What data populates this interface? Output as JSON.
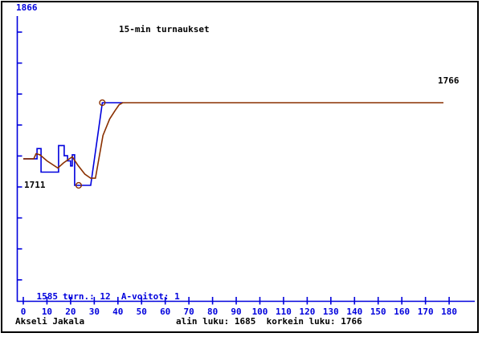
{
  "frame": {
    "bg": "#ffffff",
    "border_color": "#000000"
  },
  "colors": {
    "axis_blue": "#0000dd",
    "line_blue": "#0000dd",
    "line_brown": "#8a3000",
    "text_black": "#000000"
  },
  "chart_data": {
    "type": "line",
    "title": "15-min turnaukset",
    "xlabel": "",
    "ylabel": "",
    "x_axis": {
      "min": 0,
      "max": 180,
      "tick_step": 10,
      "tick_labels": [
        "0",
        "10",
        "20",
        "30",
        "40",
        "50",
        "60",
        "70",
        "80",
        "90",
        "100",
        "110",
        "120",
        "130",
        "140",
        "150",
        "160",
        "170",
        "180"
      ]
    },
    "y_axis": {
      "top_label": "1866",
      "bottom_label": "1585",
      "tick_count": 9
    },
    "series": [
      {
        "name": "tournament-rating",
        "color_key": "line_blue",
        "points": [
          [
            0,
            1711
          ],
          [
            5.8,
            1711
          ],
          [
            5.8,
            1721
          ],
          [
            7.5,
            1721
          ],
          [
            7.5,
            1698
          ],
          [
            14.9,
            1698
          ],
          [
            14.9,
            1724
          ],
          [
            17.3,
            1724
          ],
          [
            17.3,
            1714
          ],
          [
            18.7,
            1714
          ],
          [
            18.7,
            1709
          ],
          [
            20,
            1709
          ],
          [
            20,
            1704
          ],
          [
            20.7,
            1704
          ],
          [
            20.7,
            1715
          ],
          [
            21.7,
            1715
          ],
          [
            21.7,
            1685
          ],
          [
            28.5,
            1685
          ],
          [
            33.4,
            1766
          ],
          [
            42,
            1766
          ]
        ]
      },
      {
        "name": "rating-trend",
        "color_key": "line_brown",
        "points": [
          [
            0,
            1711
          ],
          [
            4.4,
            1711
          ],
          [
            5.4,
            1716
          ],
          [
            7,
            1715
          ],
          [
            10,
            1709
          ],
          [
            14.6,
            1702
          ],
          [
            17,
            1707
          ],
          [
            20.7,
            1713
          ],
          [
            23,
            1705
          ],
          [
            26,
            1696
          ],
          [
            28.5,
            1692
          ],
          [
            30.5,
            1692
          ],
          [
            33.7,
            1734
          ],
          [
            36.5,
            1750
          ],
          [
            38.7,
            1758
          ],
          [
            40.5,
            1764
          ],
          [
            42,
            1766
          ],
          [
            177.6,
            1766
          ]
        ]
      }
    ],
    "markers": [
      {
        "name": "lowest-point-marker",
        "x": 23.4,
        "value": 1685
      },
      {
        "name": "highest-point-marker",
        "x": 33.4,
        "value": 1766
      }
    ],
    "annotations": {
      "start_rating": "1711",
      "end_rating": "1766"
    },
    "stats_label": "turn.: 12  A-voitot: 1",
    "tournaments": 12,
    "a_wins": 1,
    "lowest": 1685,
    "highest": 1766
  },
  "footer": {
    "player": "Akseli Jakala",
    "summary": "alin luku: 1685  korkein luku: 1766"
  }
}
